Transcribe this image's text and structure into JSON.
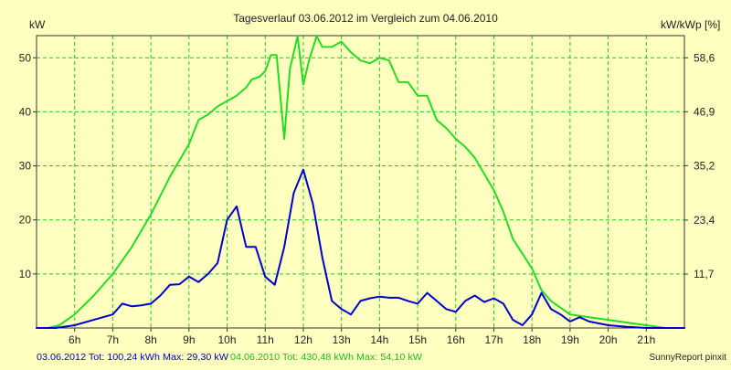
{
  "chart_data": {
    "type": "line",
    "title": "Tagesverlauf 03.06.2012 im Vergleich zum 04.06.2010",
    "ylabel_left": "kW",
    "ylabel_right": "kW/kWp [%]",
    "xlim": [
      5,
      22
    ],
    "ylim": [
      0,
      54.1
    ],
    "x_ticks": [
      6,
      7,
      8,
      9,
      10,
      11,
      12,
      13,
      14,
      15,
      16,
      17,
      18,
      19,
      20,
      21
    ],
    "x_tick_labels": [
      "6h",
      "7h",
      "8h",
      "9h",
      "10h",
      "11h",
      "12h",
      "13h",
      "14h",
      "15h",
      "16h",
      "17h",
      "18h",
      "19h",
      "20h",
      "21h"
    ],
    "y_left_ticks": [
      10,
      20,
      30,
      40,
      50
    ],
    "y_left_tick_labels": [
      "10",
      "20",
      "30",
      "40",
      "50"
    ],
    "y_right_ticks": [
      11.7,
      23.4,
      35.2,
      46.9,
      58.6
    ],
    "y_right_tick_labels": [
      "11,7",
      "23,4",
      "35,2",
      "46,9",
      "58,6"
    ],
    "grid": true,
    "series": [
      {
        "color": "#22dd22",
        "x": [
          5.0,
          5.3,
          5.6,
          6.0,
          6.5,
          7.0,
          7.5,
          8.0,
          8.5,
          8.75,
          9.0,
          9.25,
          9.5,
          9.75,
          10.0,
          10.25,
          10.5,
          10.65,
          10.85,
          11.0,
          11.15,
          11.3,
          11.5,
          11.65,
          11.85,
          12.0,
          12.15,
          12.35,
          12.5,
          12.75,
          13.0,
          13.25,
          13.5,
          13.75,
          14.0,
          14.25,
          14.5,
          14.75,
          15.0,
          15.25,
          15.5,
          15.75,
          16.0,
          16.25,
          16.5,
          16.75,
          17.0,
          17.25,
          17.5,
          18.0,
          18.25,
          18.5,
          19.0,
          19.5,
          20.0,
          20.5,
          21.0,
          21.5,
          22.0
        ],
        "values": [
          0,
          0,
          0.5,
          2.5,
          6,
          10,
          15,
          21,
          28,
          31,
          34,
          38.5,
          39.5,
          41,
          42,
          43,
          44.5,
          46,
          46.5,
          47.5,
          50.5,
          50.5,
          35,
          48,
          54,
          45,
          49.5,
          54,
          52,
          52,
          53,
          51,
          49.5,
          49,
          50,
          49.5,
          45.5,
          45.5,
          43,
          43,
          38.5,
          37,
          35,
          33.5,
          31.5,
          28.5,
          25.5,
          21.5,
          16.5,
          11,
          7,
          5,
          2.5,
          2,
          1.5,
          1,
          0.5,
          0,
          0
        ]
      },
      {
        "color": "#0000cc",
        "x": [
          5.0,
          5.5,
          6.0,
          6.5,
          7.0,
          7.25,
          7.5,
          7.75,
          8.0,
          8.25,
          8.5,
          8.75,
          9.0,
          9.25,
          9.5,
          9.75,
          10.0,
          10.25,
          10.5,
          10.75,
          11.0,
          11.25,
          11.5,
          11.75,
          12.0,
          12.25,
          12.5,
          12.75,
          13.0,
          13.25,
          13.5,
          13.75,
          14.0,
          14.25,
          14.5,
          14.75,
          15.0,
          15.25,
          15.5,
          15.75,
          16.0,
          16.25,
          16.5,
          16.75,
          17.0,
          17.25,
          17.5,
          17.75,
          18.0,
          18.25,
          18.5,
          18.75,
          19.0,
          19.25,
          19.5,
          20.0,
          20.5,
          21.0,
          21.5,
          22.0
        ],
        "values": [
          0,
          0,
          0.5,
          1.5,
          2.5,
          4.5,
          4,
          4.2,
          4.5,
          6,
          8,
          8.1,
          9.5,
          8.5,
          10,
          12,
          20,
          22.5,
          15,
          15,
          9.5,
          8,
          15,
          25,
          29.3,
          23,
          13,
          5,
          3.5,
          2.5,
          5,
          5.5,
          5.8,
          5.6,
          5.6,
          5,
          4.5,
          6.5,
          5,
          3.5,
          3,
          5,
          6,
          4.8,
          5.5,
          4.5,
          1.5,
          0.5,
          2.5,
          6.5,
          3.5,
          2.5,
          1.2,
          2,
          1.2,
          0.5,
          0.2,
          0,
          0,
          0
        ]
      }
    ],
    "footer": {
      "series2_text": "03.06.2012 Tot: 100,24 kWh Max: 29,30 kW",
      "series1_text": "04.06.2010 Tot: 430,48 kWh Max: 54,10 kW",
      "credit": "SunnyReport pinxit"
    }
  }
}
